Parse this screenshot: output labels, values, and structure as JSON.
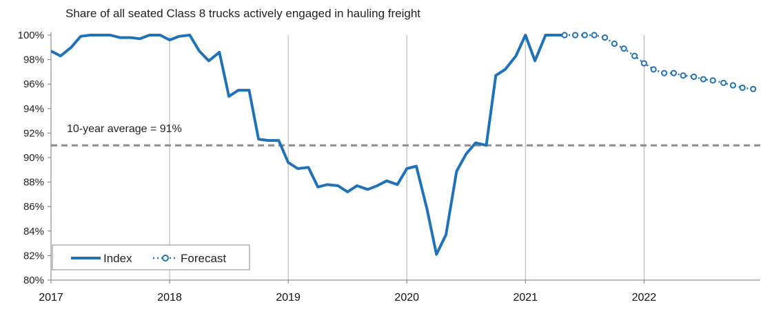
{
  "chart_data": {
    "type": "line",
    "title": "Share of all seated Class 8 trucks actively engaged in hauling freight",
    "xlabel": "",
    "ylabel": "",
    "xlim": [
      2017.0,
      2022.98
    ],
    "ylim": [
      80,
      100
    ],
    "y_ticks": [
      "80%",
      "82%",
      "84%",
      "86%",
      "88%",
      "90%",
      "92%",
      "94%",
      "96%",
      "98%",
      "100%"
    ],
    "y_tick_values": [
      80,
      82,
      84,
      86,
      88,
      90,
      92,
      94,
      96,
      98,
      100
    ],
    "x_ticks": [
      "2017",
      "2018",
      "2019",
      "2020",
      "2021",
      "2022"
    ],
    "x_tick_values": [
      2017,
      2018,
      2019,
      2020,
      2021,
      2022
    ],
    "grid": "vertical",
    "legend_position": "bottom-left",
    "colors": {
      "series": "#1f72b8",
      "reference": "#8c8c8c",
      "gridline": "#b0b0b0"
    },
    "reference_line": {
      "value": 91,
      "label": "10-year average = 91%"
    },
    "series": [
      {
        "name": "Index",
        "style": "solid",
        "points": [
          [
            2017.0,
            98.7
          ],
          [
            2017.08,
            98.3
          ],
          [
            2017.17,
            99.0
          ],
          [
            2017.25,
            99.9
          ],
          [
            2017.33,
            100.0
          ],
          [
            2017.42,
            100.0
          ],
          [
            2017.5,
            100.0
          ],
          [
            2017.58,
            99.8
          ],
          [
            2017.67,
            99.8
          ],
          [
            2017.75,
            99.7
          ],
          [
            2017.83,
            100.0
          ],
          [
            2017.92,
            100.0
          ],
          [
            2018.0,
            99.6
          ],
          [
            2018.08,
            99.9
          ],
          [
            2018.17,
            100.0
          ],
          [
            2018.25,
            98.7
          ],
          [
            2018.33,
            97.9
          ],
          [
            2018.42,
            98.6
          ],
          [
            2018.5,
            95.0
          ],
          [
            2018.58,
            95.5
          ],
          [
            2018.67,
            95.5
          ],
          [
            2018.75,
            91.5
          ],
          [
            2018.83,
            91.4
          ],
          [
            2018.92,
            91.4
          ],
          [
            2019.0,
            89.6
          ],
          [
            2019.08,
            89.1
          ],
          [
            2019.17,
            89.2
          ],
          [
            2019.25,
            87.6
          ],
          [
            2019.33,
            87.8
          ],
          [
            2019.42,
            87.7
          ],
          [
            2019.5,
            87.2
          ],
          [
            2019.58,
            87.7
          ],
          [
            2019.67,
            87.4
          ],
          [
            2019.75,
            87.7
          ],
          [
            2019.83,
            88.1
          ],
          [
            2019.92,
            87.8
          ],
          [
            2020.0,
            89.1
          ],
          [
            2020.08,
            89.3
          ],
          [
            2020.17,
            85.8
          ],
          [
            2020.25,
            82.1
          ],
          [
            2020.33,
            83.7
          ],
          [
            2020.42,
            88.9
          ],
          [
            2020.5,
            90.3
          ],
          [
            2020.58,
            91.2
          ],
          [
            2020.67,
            91.0
          ],
          [
            2020.75,
            96.7
          ],
          [
            2020.83,
            97.2
          ],
          [
            2020.92,
            98.3
          ],
          [
            2021.0,
            100.0
          ],
          [
            2021.08,
            97.9
          ],
          [
            2021.17,
            100.0
          ],
          [
            2021.25,
            100.0
          ],
          [
            2021.33,
            100.0
          ]
        ]
      },
      {
        "name": "Forecast",
        "style": "dotted-markers",
        "points": [
          [
            2021.33,
            100.0
          ],
          [
            2021.42,
            100.0
          ],
          [
            2021.5,
            100.0
          ],
          [
            2021.58,
            100.0
          ],
          [
            2021.67,
            99.8
          ],
          [
            2021.75,
            99.3
          ],
          [
            2021.83,
            98.9
          ],
          [
            2021.92,
            98.3
          ],
          [
            2022.0,
            97.7
          ],
          [
            2022.08,
            97.2
          ],
          [
            2022.17,
            96.9
          ],
          [
            2022.25,
            96.9
          ],
          [
            2022.33,
            96.7
          ],
          [
            2022.42,
            96.6
          ],
          [
            2022.5,
            96.4
          ],
          [
            2022.58,
            96.3
          ],
          [
            2022.67,
            96.1
          ],
          [
            2022.75,
            95.9
          ],
          [
            2022.83,
            95.7
          ],
          [
            2022.92,
            95.6
          ]
        ]
      }
    ]
  }
}
